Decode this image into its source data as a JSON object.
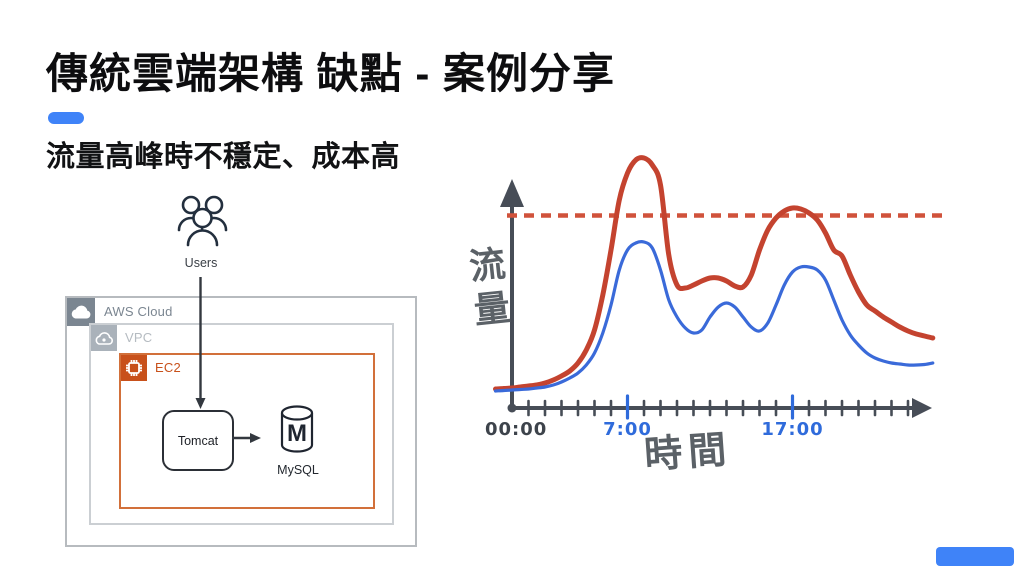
{
  "slide": {
    "title": "傳統雲端架構 缺點 - 案例分享",
    "subtitle": "流量高峰時不穩定、成本高",
    "accent_color": "#3f83f8"
  },
  "diagram": {
    "users_label": "Users",
    "aws_cloud_label": "AWS Cloud",
    "vpc_label": "VPC",
    "ec2_label": "EC2",
    "tomcat_label": "Tomcat",
    "mysql_label": "MySQL",
    "mysql_letter": "M",
    "colors": {
      "aws_gray": "#7b8691",
      "vpc_gray": "#aab2ba",
      "ec2_orange": "#c8511b",
      "outline_dark": "#232f3e",
      "arrow_dark": "#33383f"
    }
  },
  "chart_data": {
    "type": "line",
    "title": "",
    "xlabel": "時間",
    "ylabel": "流量",
    "axis_color": "#474d57",
    "axis_hours": 24,
    "start_hour": -1,
    "step_hours": 0.5,
    "highlight_tick_hours": [
      7,
      17
    ],
    "highlight_tick_color": "#2f6bdb",
    "x_tick_labels": [
      {
        "text": "00:00",
        "hour": 0.25,
        "color": "#3d434b"
      },
      {
        "text": "7:00",
        "hour": 7,
        "color": "#2f6bdb"
      },
      {
        "text": "17:00",
        "hour": 17,
        "color": "#2f6bdb"
      }
    ],
    "threshold": {
      "value": 0.77,
      "color": "#d0523b",
      "style": "dashed"
    },
    "ylim": [
      0,
      1
    ],
    "grid": false,
    "legend": "none",
    "series": [
      {
        "name": "red-peak-traffic",
        "color": "#c4432f",
        "width": 5,
        "values": [
          0.076,
          0.078,
          0.08,
          0.084,
          0.088,
          0.092,
          0.1,
          0.112,
          0.128,
          0.148,
          0.18,
          0.232,
          0.312,
          0.452,
          0.632,
          0.832,
          0.94,
          0.992,
          1.0,
          0.972,
          0.892,
          0.612,
          0.492,
          0.48,
          0.492,
          0.508,
          0.52,
          0.52,
          0.508,
          0.488,
          0.484,
          0.532,
          0.632,
          0.712,
          0.76,
          0.788,
          0.8,
          0.796,
          0.78,
          0.752,
          0.7,
          0.632,
          0.608,
          0.532,
          0.464,
          0.412,
          0.388,
          0.364,
          0.344,
          0.324,
          0.308,
          0.296,
          0.288,
          0.28
        ]
      },
      {
        "name": "blue-normal-traffic",
        "color": "#3a6ad9",
        "width": 3.2,
        "values": [
          0.068,
          0.07,
          0.072,
          0.074,
          0.076,
          0.08,
          0.084,
          0.092,
          0.104,
          0.12,
          0.14,
          0.172,
          0.22,
          0.3,
          0.412,
          0.552,
          0.632,
          0.66,
          0.664,
          0.64,
          0.552,
          0.432,
          0.364,
          0.32,
          0.3,
          0.312,
          0.364,
          0.404,
          0.42,
          0.404,
          0.364,
          0.324,
          0.308,
          0.34,
          0.412,
          0.492,
          0.544,
          0.564,
          0.564,
          0.552,
          0.512,
          0.432,
          0.352,
          0.292,
          0.252,
          0.22,
          0.2,
          0.188,
          0.18,
          0.176,
          0.172,
          0.172,
          0.174,
          0.18
        ]
      }
    ]
  }
}
